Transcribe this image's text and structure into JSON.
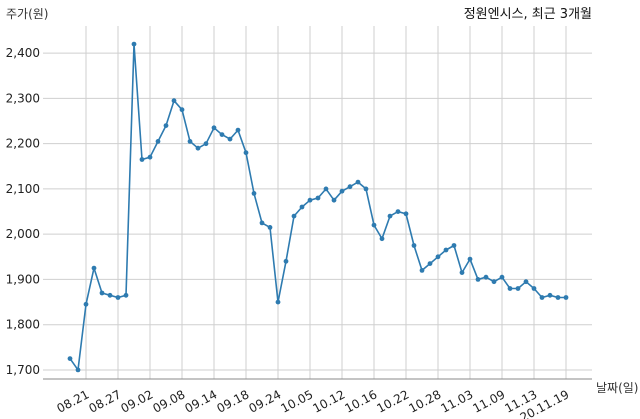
{
  "chart_data": {
    "type": "line",
    "title": "정원엔시스, 최근 3개월",
    "ylabel": "주가(원)",
    "xlabel": "날짜(일)",
    "ylim": [
      1680,
      2460
    ],
    "yticks": [
      1700,
      1800,
      1900,
      2000,
      2100,
      2200,
      2300,
      2400
    ],
    "ytick_labels": [
      "1,700",
      "1,800",
      "1,900",
      "2,000",
      "2,100",
      "2,200",
      "2,300",
      "2,400"
    ],
    "xtick_labels": [
      "08.21",
      "08.27",
      "09.02",
      "09.08",
      "09.14",
      "09.18",
      "09.24",
      "10.05",
      "10.12",
      "10.16",
      "10.22",
      "10.28",
      "11.03",
      "11.09",
      "11.13",
      "20.11.19"
    ],
    "xtick_indices": [
      2,
      6,
      10,
      14,
      18,
      22,
      26,
      30,
      34,
      38,
      42,
      46,
      50,
      54,
      58,
      62
    ],
    "grid": true,
    "color": "#2e7bb0",
    "series": [
      {
        "values": [
          1725,
          1700,
          1845,
          1925,
          1870,
          1865,
          1860,
          1865,
          2420,
          2165,
          2170,
          2205,
          2240,
          2295,
          2275,
          2205,
          2190,
          2200,
          2235,
          2220,
          2210,
          2230,
          2180,
          2090,
          2025,
          2015,
          1850,
          1940,
          2040,
          2060,
          2075,
          2080,
          2100,
          2075,
          2095,
          2105,
          2115,
          2100,
          2020,
          1990,
          2040,
          2050,
          2045,
          1975,
          1920,
          1935,
          1950,
          1965,
          1975,
          1915,
          1945,
          1900,
          1905,
          1895,
          1905,
          1880,
          1880,
          1895,
          1880,
          1860,
          1865,
          1860,
          1860
        ]
      }
    ]
  }
}
